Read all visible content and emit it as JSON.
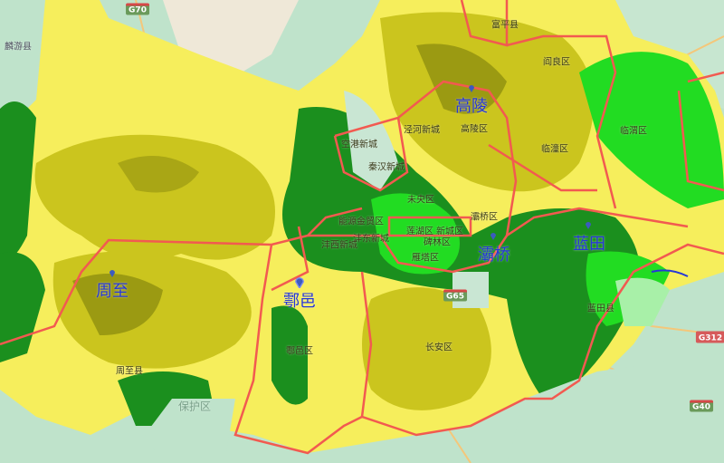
{
  "colors": {
    "basemap_green": "#bfe3cb",
    "basemap_beige": "#efe8d8",
    "radar_light_yellow": "#f6ee5c",
    "radar_olive": "#cbc51e",
    "radar_dark_olive": "#9b9a12",
    "radar_dark_green": "#1b8f1e",
    "radar_bright_green": "#22dc22",
    "radar_pale_green": "#a8f0a8",
    "boundary": "#f25a50",
    "city_label": "#2637d6"
  },
  "cities": [
    {
      "name": "周至",
      "icon": "map-pin-icon"
    },
    {
      "name": "鄠邑",
      "icon": "map-pin-icon"
    },
    {
      "name": "高陵",
      "icon": "map-pin-icon"
    },
    {
      "name": "灞桥",
      "icon": "map-pin-icon"
    },
    {
      "name": "蓝田",
      "icon": "map-pin-icon"
    }
  ],
  "districts": [
    "富平县",
    "阎良区",
    "临潼区",
    "临渭区",
    "高陵区",
    "泾河新城",
    "空港新城",
    "秦汉新城",
    "未央区",
    "灞桥区",
    "能源金贸区",
    "沣东新城",
    "莲湖区",
    "新城区",
    "碑林区",
    "雁塔区",
    "沣西新城",
    "鄠邑区",
    "长安区",
    "周至县",
    "蓝田县",
    "麟游县",
    "保护区"
  ],
  "roads": [
    "G70",
    "G65",
    "G312",
    "G40"
  ]
}
